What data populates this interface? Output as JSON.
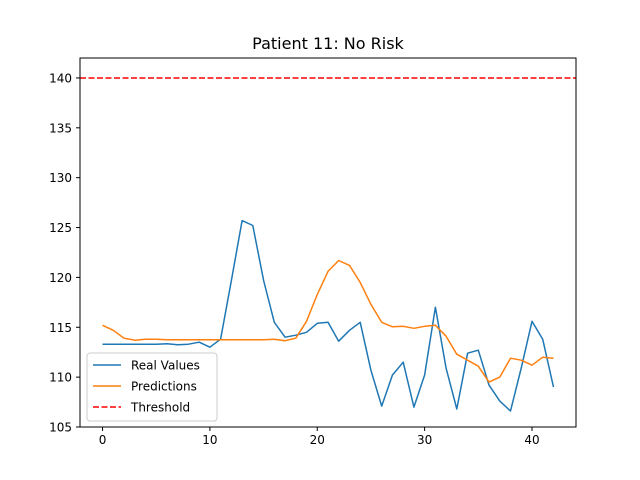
{
  "chart_data": {
    "type": "line",
    "title": "Patient 11: No Risk",
    "xlabel": "",
    "ylabel": "",
    "xlim": [
      -2.1,
      44.1
    ],
    "ylim": [
      105,
      142
    ],
    "x_ticks": [
      0,
      10,
      20,
      30,
      40
    ],
    "y_ticks": [
      105,
      110,
      115,
      120,
      125,
      130,
      135,
      140
    ],
    "grid": false,
    "legend_position": "lower-left",
    "x": [
      0,
      1,
      2,
      3,
      4,
      5,
      6,
      7,
      8,
      9,
      10,
      11,
      12,
      13,
      14,
      15,
      16,
      17,
      18,
      19,
      20,
      21,
      22,
      23,
      24,
      25,
      26,
      27,
      28,
      29,
      30,
      31,
      32,
      33,
      34,
      35,
      36,
      37,
      38,
      39,
      40,
      41,
      42
    ],
    "series": [
      {
        "name": "Real Values",
        "color": "#1f77b4",
        "style": "solid",
        "values": [
          113.3,
          113.3,
          113.3,
          113.3,
          113.3,
          113.3,
          113.35,
          113.25,
          113.3,
          113.5,
          113.0,
          113.8,
          119.7,
          125.7,
          125.2,
          119.7,
          115.5,
          114.0,
          114.2,
          114.5,
          115.4,
          115.5,
          113.6,
          114.7,
          115.5,
          110.7,
          107.1,
          110.2,
          111.5,
          107.0,
          110.2,
          117.0,
          110.9,
          106.8,
          112.4,
          112.7,
          109.2,
          107.6,
          106.6,
          110.9,
          115.6,
          113.8,
          109.0
        ]
      },
      {
        "name": "Predictions",
        "color": "#ff7f0e",
        "style": "solid",
        "values": [
          115.2,
          114.7,
          113.9,
          113.7,
          113.8,
          113.8,
          113.75,
          113.75,
          113.75,
          113.75,
          113.75,
          113.75,
          113.75,
          113.75,
          113.75,
          113.75,
          113.8,
          113.65,
          113.9,
          115.6,
          118.3,
          120.6,
          121.7,
          121.2,
          119.5,
          117.3,
          115.5,
          115.05,
          115.1,
          114.9,
          115.1,
          115.2,
          114.1,
          112.3,
          111.7,
          111.1,
          109.5,
          110.0,
          111.9,
          111.7,
          111.2,
          112.0,
          111.9
        ]
      }
    ],
    "threshold": {
      "name": "Threshold",
      "value": 140,
      "color": "#ff0000",
      "style": "dashed"
    },
    "legend": [
      "Real Values",
      "Predictions",
      "Threshold"
    ]
  }
}
